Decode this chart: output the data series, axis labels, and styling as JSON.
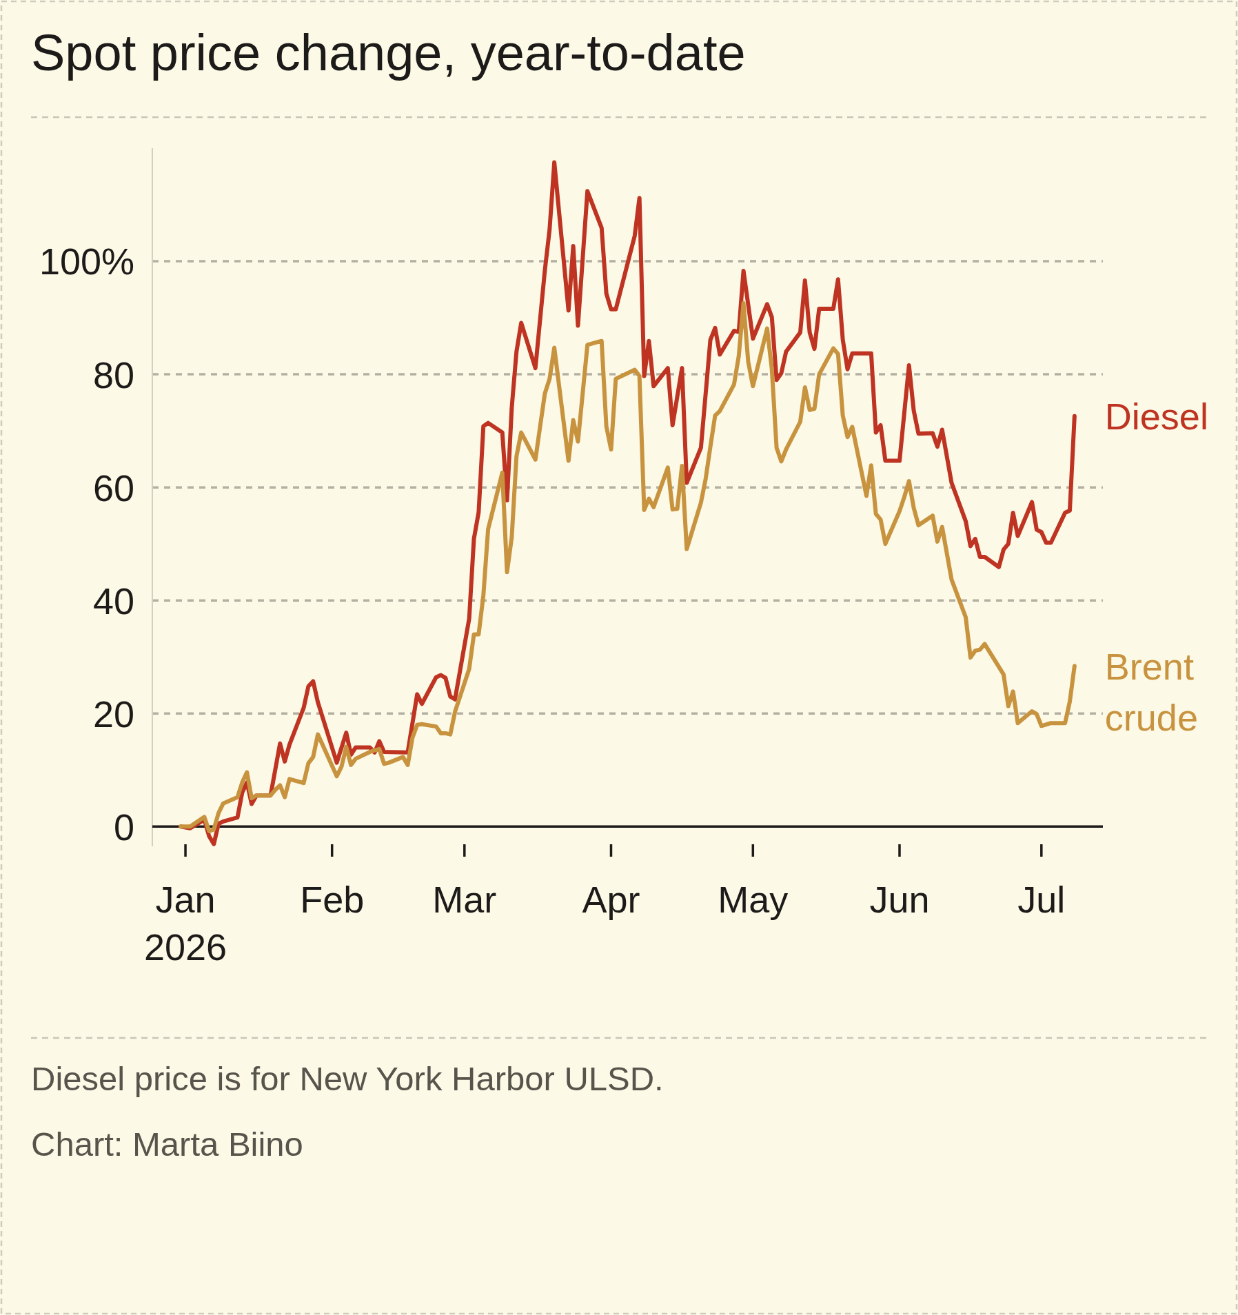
{
  "chart_data": {
    "type": "line",
    "title": "Spot price change, year-to-date",
    "annotations": [
      "Diesel price is for New York Harbor ULSD.",
      "Chart: Marta Biino"
    ],
    "xlim": [
      "2025-12-25",
      "2026-07-14"
    ],
    "xticks": [
      {
        "value": "2026-01-01",
        "label": "Jan 2026"
      },
      {
        "value": "2026-02-01",
        "label": "Feb"
      },
      {
        "value": "2026-03-01",
        "label": "Mar"
      },
      {
        "value": "2026-04-01",
        "label": "Apr"
      },
      {
        "value": "2026-05-01",
        "label": "May"
      },
      {
        "value": "2026-06-01",
        "label": "Jun"
      },
      {
        "value": "2026-07-01",
        "label": "Jul"
      }
    ],
    "ylim": [
      -3.5,
      120
    ],
    "yticks": [
      0,
      20,
      40,
      60,
      {
        "value": 80,
        "label": "80"
      },
      {
        "value": 100,
        "label": "100%"
      }
    ],
    "grid": "y",
    "legend": false,
    "series": [
      {
        "name": "Diesel",
        "color": "#be3322",
        "x": [
          "2025-12-31",
          "2026-01-02",
          "2026-01-05",
          "2026-01-06",
          "2026-01-07",
          "2026-01-08",
          "2026-01-09",
          "2026-01-12",
          "2026-01-13",
          "2026-01-14",
          "2026-01-15",
          "2026-01-16",
          "2026-01-19",
          "2026-01-21",
          "2026-01-22",
          "2026-01-23",
          "2026-01-26",
          "2026-01-27",
          "2026-01-28",
          "2026-01-29",
          "2026-02-02",
          "2026-02-04",
          "2026-02-05",
          "2026-02-06",
          "2026-02-09",
          "2026-02-10",
          "2026-02-11",
          "2026-02-12",
          "2026-02-17",
          "2026-02-19",
          "2026-02-20",
          "2026-02-23",
          "2026-02-24",
          "2026-02-25",
          "2026-02-26",
          "2026-02-27",
          "2026-03-02",
          "2026-03-03",
          "2026-03-04",
          "2026-03-05",
          "2026-03-06",
          "2026-03-09",
          "2026-03-10",
          "2026-03-11",
          "2026-03-12",
          "2026-03-13",
          "2026-03-16",
          "2026-03-18",
          "2026-03-19",
          "2026-03-20",
          "2026-03-23",
          "2026-03-24",
          "2026-03-25",
          "2026-03-27",
          "2026-03-30",
          "2026-03-31",
          "2026-04-01",
          "2026-04-02",
          "2026-04-06",
          "2026-04-07",
          "2026-04-08",
          "2026-04-09",
          "2026-04-10",
          "2026-04-13",
          "2026-04-14",
          "2026-04-16",
          "2026-04-17",
          "2026-04-20",
          "2026-04-22",
          "2026-04-23",
          "2026-04-24",
          "2026-04-27",
          "2026-04-28",
          "2026-04-29",
          "2026-05-01",
          "2026-05-04",
          "2026-05-05",
          "2026-05-06",
          "2026-05-07",
          "2026-05-08",
          "2026-05-11",
          "2026-05-12",
          "2026-05-13",
          "2026-05-14",
          "2026-05-15",
          "2026-05-18",
          "2026-05-19",
          "2026-05-20",
          "2026-05-21",
          "2026-05-22",
          "2026-05-26",
          "2026-05-27",
          "2026-05-28",
          "2026-05-29",
          "2026-06-01",
          "2026-06-03",
          "2026-06-04",
          "2026-06-05",
          "2026-06-08",
          "2026-06-09",
          "2026-06-10",
          "2026-06-12",
          "2026-06-15",
          "2026-06-16",
          "2026-06-17",
          "2026-06-18",
          "2026-06-19",
          "2026-06-22",
          "2026-06-23",
          "2026-06-24",
          "2026-06-25",
          "2026-06-26",
          "2026-06-29",
          "2026-06-30",
          "2026-07-01",
          "2026-07-02",
          "2026-07-03",
          "2026-07-06",
          "2026-07-07",
          "2026-07-08"
        ],
        "values": [
          0,
          -0.3,
          1.2,
          -1.7,
          -3.1,
          0.5,
          0.9,
          1.6,
          6.0,
          7.8,
          4.0,
          5.5,
          5.5,
          14.7,
          11.5,
          14.5,
          21.0,
          24.8,
          25.7,
          22.0,
          11.3,
          16.6,
          12.7,
          14.0,
          14.0,
          13.1,
          15.1,
          13.2,
          13.1,
          23.4,
          21.7,
          26.4,
          26.8,
          26.3,
          23.0,
          22.5,
          36.8,
          50.9,
          55.6,
          70.8,
          71.4,
          69.7,
          57.7,
          74.1,
          84.0,
          89.1,
          81.1,
          98.4,
          105.6,
          117.5,
          91.3,
          102.7,
          88.6,
          112.4,
          105.9,
          94.3,
          91.5,
          91.5,
          104.5,
          111.2,
          79.7,
          85.9,
          77.9,
          81.1,
          71.0,
          81.1,
          60.8,
          67.0,
          86.1,
          88.2,
          83.5,
          87.7,
          87.5,
          98.3,
          86.3,
          92.4,
          90.1,
          79.0,
          80.2,
          84.0,
          87.4,
          96.6,
          87.4,
          84.5,
          91.6,
          91.6,
          96.8,
          86.1,
          80.9,
          83.7,
          83.7,
          69.7,
          71.0,
          64.7,
          64.7,
          81.6,
          73.6,
          69.5,
          69.6,
          67.2,
          70.2,
          60.8,
          54.0,
          49.6,
          50.9,
          47.7,
          47.7,
          45.9,
          49.0,
          50.0,
          55.5,
          51.4,
          57.4,
          52.5,
          52.1,
          50.2,
          50.2,
          55.5,
          55.9,
          72.6
        ]
      },
      {
        "name": "Brent crude",
        "color": "#c8933f",
        "x": [
          "2025-12-31",
          "2026-01-02",
          "2026-01-05",
          "2026-01-06",
          "2026-01-07",
          "2026-01-08",
          "2026-01-09",
          "2026-01-12",
          "2026-01-13",
          "2026-01-14",
          "2026-01-15",
          "2026-01-16",
          "2026-01-19",
          "2026-01-20",
          "2026-01-21",
          "2026-01-22",
          "2026-01-23",
          "2026-01-26",
          "2026-01-27",
          "2026-01-28",
          "2026-01-29",
          "2026-02-02",
          "2026-02-03",
          "2026-02-04",
          "2026-02-05",
          "2026-02-06",
          "2026-02-09",
          "2026-02-10",
          "2026-02-11",
          "2026-02-12",
          "2026-02-13",
          "2026-02-16",
          "2026-02-17",
          "2026-02-18",
          "2026-02-19",
          "2026-02-20",
          "2026-02-23",
          "2026-02-24",
          "2026-02-25",
          "2026-02-26",
          "2026-02-27",
          "2026-03-02",
          "2026-03-03",
          "2026-03-04",
          "2026-03-05",
          "2026-03-06",
          "2026-03-09",
          "2026-03-10",
          "2026-03-11",
          "2026-03-12",
          "2026-03-13",
          "2026-03-16",
          "2026-03-17",
          "2026-03-18",
          "2026-03-19",
          "2026-03-20",
          "2026-03-23",
          "2026-03-24",
          "2026-03-25",
          "2026-03-27",
          "2026-03-30",
          "2026-03-31",
          "2026-04-01",
          "2026-04-02",
          "2026-04-06",
          "2026-04-07",
          "2026-04-08",
          "2026-04-09",
          "2026-04-10",
          "2026-04-13",
          "2026-04-14",
          "2026-04-15",
          "2026-04-16",
          "2026-04-17",
          "2026-04-20",
          "2026-04-21",
          "2026-04-22",
          "2026-04-23",
          "2026-04-24",
          "2026-04-27",
          "2026-04-28",
          "2026-04-29",
          "2026-04-30",
          "2026-05-01",
          "2026-05-04",
          "2026-05-05",
          "2026-05-06",
          "2026-05-07",
          "2026-05-08",
          "2026-05-11",
          "2026-05-12",
          "2026-05-13",
          "2026-05-14",
          "2026-05-15",
          "2026-05-18",
          "2026-05-19",
          "2026-05-20",
          "2026-05-21",
          "2026-05-22",
          "2026-05-25",
          "2026-05-26",
          "2026-05-27",
          "2026-05-28",
          "2026-05-29",
          "2026-06-01",
          "2026-06-02",
          "2026-06-03",
          "2026-06-04",
          "2026-06-05",
          "2026-06-08",
          "2026-06-09",
          "2026-06-10",
          "2026-06-12",
          "2026-06-15",
          "2026-06-16",
          "2026-06-17",
          "2026-06-18",
          "2026-06-19",
          "2026-06-23",
          "2026-06-24",
          "2026-06-25",
          "2026-06-26",
          "2026-06-29",
          "2026-06-30",
          "2026-07-01",
          "2026-07-03",
          "2026-07-06",
          "2026-07-07",
          "2026-07-08"
        ],
        "values": [
          0,
          0.0,
          1.7,
          -0.8,
          -0.5,
          2.4,
          4.1,
          5.2,
          7.8,
          9.6,
          5.0,
          5.5,
          5.5,
          6.5,
          7.3,
          5.2,
          8.4,
          7.7,
          11.2,
          12.3,
          16.3,
          8.9,
          10.6,
          14.1,
          10.9,
          12.0,
          13.2,
          13.5,
          13.7,
          11.1,
          11.3,
          12.3,
          10.9,
          15.7,
          18.0,
          18.1,
          17.7,
          16.5,
          16.5,
          16.3,
          20.3,
          27.9,
          34.0,
          34.0,
          40.9,
          52.6,
          62.6,
          45.0,
          51.2,
          65.5,
          69.7,
          64.9,
          70.8,
          76.6,
          79.2,
          84.7,
          64.7,
          71.9,
          68.1,
          85.2,
          85.9,
          70.8,
          66.7,
          79.2,
          80.8,
          79.7,
          56.0,
          58.0,
          56.5,
          63.5,
          56.1,
          56.2,
          63.8,
          49.1,
          57.3,
          61.5,
          67.2,
          72.7,
          73.5,
          78.2,
          83.2,
          92.6,
          82.2,
          77.9,
          88.1,
          80.9,
          67.0,
          64.6,
          66.7,
          71.6,
          77.7,
          73.7,
          73.9,
          80.0,
          84.6,
          83.6,
          72.7,
          68.9,
          70.7,
          58.5,
          63.9,
          55.3,
          54.3,
          50.0,
          55.8,
          58.3,
          61.1,
          56.4,
          53.3,
          55.0,
          50.4,
          53.0,
          43.7,
          37.0,
          29.9,
          31.1,
          31.3,
          32.3,
          26.9,
          21.3,
          23.9,
          18.3,
          20.4,
          19.9,
          17.8,
          18.3,
          18.3,
          22.1,
          28.4
        ]
      }
    ]
  }
}
